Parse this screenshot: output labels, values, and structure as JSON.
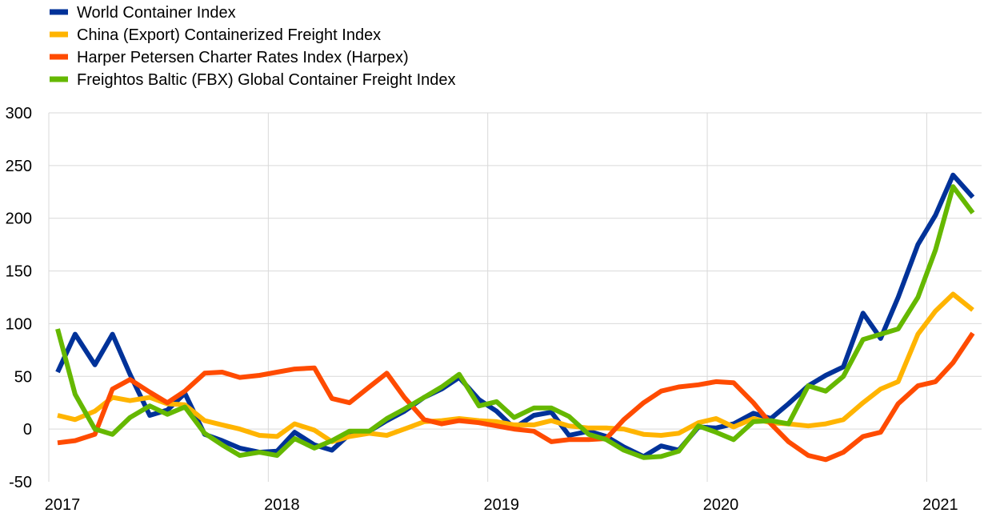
{
  "chart_data": {
    "type": "line",
    "title": "",
    "xlabel": "",
    "ylabel": "",
    "ylim": [
      -50,
      300
    ],
    "yticks": [
      -50,
      0,
      50,
      100,
      150,
      200,
      250,
      300
    ],
    "xlim": [
      2017,
      2021.25
    ],
    "xticks": [
      2017,
      2018,
      2019,
      2020,
      2021
    ],
    "xtick_labels": [
      "2017",
      "2018",
      "2019",
      "2020",
      "2021"
    ],
    "grid": "vertical-and-horizontal",
    "legend_position": "top-left",
    "x": [
      2017.04,
      2017.12,
      2017.21,
      2017.29,
      2017.37,
      2017.46,
      2017.54,
      2017.62,
      2017.71,
      2017.79,
      2017.87,
      2017.96,
      2018.04,
      2018.12,
      2018.21,
      2018.29,
      2018.37,
      2018.46,
      2018.54,
      2018.62,
      2018.71,
      2018.79,
      2018.87,
      2018.96,
      2019.04,
      2019.12,
      2019.21,
      2019.29,
      2019.37,
      2019.46,
      2019.54,
      2019.62,
      2019.71,
      2019.79,
      2019.87,
      2019.96,
      2020.04,
      2020.12,
      2020.21,
      2020.29,
      2020.37,
      2020.46,
      2020.54,
      2020.62,
      2020.71,
      2020.79,
      2020.87,
      2020.96,
      2021.04,
      2021.12,
      2021.21
    ],
    "series": [
      {
        "name": "World Container Index",
        "color": "#003299",
        "values": [
          54,
          90,
          61,
          90,
          52,
          13,
          18,
          34,
          -5,
          -11,
          -18,
          -22,
          -21,
          -3,
          -15,
          -20,
          -5,
          -2,
          8,
          17,
          30,
          38,
          49,
          28,
          17,
          1,
          13,
          16,
          -6,
          -2,
          -7,
          -17,
          -26,
          -16,
          -20,
          2,
          1,
          5,
          15,
          10,
          24,
          41,
          51,
          59,
          110,
          86,
          125,
          175,
          203,
          241,
          220
        ]
      },
      {
        "name": "China (Export) Containerized Freight Index",
        "color": "#FFB400",
        "values": [
          13,
          9,
          17,
          30,
          27,
          30,
          24,
          23,
          8,
          4,
          0,
          -6,
          -7,
          5,
          -1,
          -12,
          -7,
          -4,
          -6,
          0,
          7,
          8,
          10,
          8,
          7,
          4,
          4,
          8,
          3,
          1,
          1,
          0,
          -5,
          -6,
          -4,
          6,
          10,
          2,
          10,
          6,
          5,
          3,
          5,
          9,
          25,
          38,
          45,
          90,
          112,
          128,
          113
        ]
      },
      {
        "name": "Harper Petersen Charter Rates Index (Harpex)",
        "color": "#FF4B00",
        "values": [
          -13,
          -11,
          -5,
          38,
          47,
          35,
          25,
          36,
          53,
          54,
          49,
          51,
          54,
          57,
          58,
          29,
          25,
          40,
          53,
          30,
          9,
          5,
          8,
          6,
          3,
          0,
          -2,
          -12,
          -10,
          -10,
          -9,
          9,
          25,
          36,
          40,
          42,
          45,
          44,
          25,
          5,
          -12,
          -25,
          -29,
          -22,
          -7,
          -3,
          24,
          41,
          45,
          63,
          91
        ]
      },
      {
        "name": "Freightos Baltic (FBX) Global Container Freight Index",
        "color": "#65B800",
        "values": [
          95,
          33,
          0,
          -5,
          11,
          22,
          14,
          21,
          -4,
          -15,
          -25,
          -22,
          -25,
          -9,
          -18,
          -11,
          -2,
          -2,
          10,
          19,
          30,
          40,
          52,
          22,
          26,
          11,
          20,
          20,
          12,
          -5,
          -10,
          -20,
          -27,
          -26,
          -21,
          3,
          -3,
          -10,
          7,
          8,
          5,
          41,
          36,
          50,
          85,
          90,
          95,
          125,
          170,
          230,
          205
        ]
      }
    ]
  }
}
